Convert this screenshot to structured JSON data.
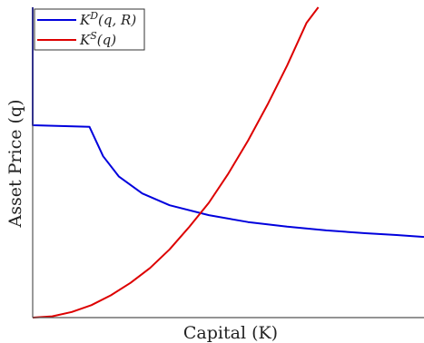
{
  "chart_data": {
    "type": "line",
    "title": "",
    "xlabel": "Capital (K)",
    "ylabel": "Asset Price (q)",
    "xlim": [
      0,
      10
    ],
    "ylim": [
      0,
      10
    ],
    "x_ticks_shown": false,
    "y_ticks_shown": false,
    "grid": false,
    "legend_position": "top-left",
    "series": [
      {
        "name": "K^D(q, R)",
        "color": "#0000dd",
        "points": [
          [
            0.0,
            10.0
          ],
          [
            0.0,
            6.2
          ],
          [
            1.45,
            6.15
          ],
          [
            1.8,
            5.2
          ],
          [
            2.2,
            4.55
          ],
          [
            2.8,
            4.0
          ],
          [
            3.5,
            3.62
          ],
          [
            4.5,
            3.3
          ],
          [
            5.5,
            3.08
          ],
          [
            6.5,
            2.93
          ],
          [
            7.5,
            2.81
          ],
          [
            8.5,
            2.72
          ],
          [
            9.3,
            2.66
          ],
          [
            10.0,
            2.6
          ]
        ]
      },
      {
        "name": "K^S(q)",
        "color": "#dd0000",
        "points": [
          [
            0.0,
            0.0
          ],
          [
            0.5,
            0.04
          ],
          [
            1.0,
            0.18
          ],
          [
            1.5,
            0.4
          ],
          [
            2.0,
            0.72
          ],
          [
            2.5,
            1.12
          ],
          [
            3.0,
            1.6
          ],
          [
            3.5,
            2.2
          ],
          [
            4.0,
            2.92
          ],
          [
            4.5,
            3.7
          ],
          [
            5.0,
            4.64
          ],
          [
            5.5,
            5.7
          ],
          [
            6.0,
            6.86
          ],
          [
            6.5,
            8.12
          ],
          [
            7.0,
            9.5
          ],
          [
            7.3,
            10.0
          ]
        ]
      }
    ],
    "legend": {
      "entries": [
        {
          "main": "K",
          "sup": "D",
          "rest": "(q, R)",
          "color": "#0000dd"
        },
        {
          "main": "K",
          "sup": "S",
          "rest": "(q)",
          "color": "#dd0000"
        }
      ]
    }
  }
}
